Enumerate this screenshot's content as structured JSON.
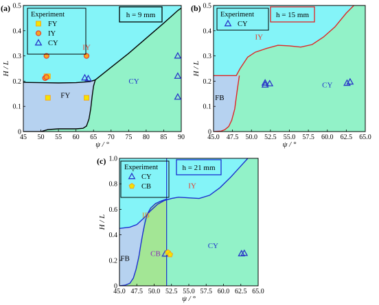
{
  "colors": {
    "region_cyan": "#84f4f8",
    "region_green": "#92f2c8",
    "region_blue": "#b6d2f0",
    "region_lightgreen": "#a3e695",
    "region_teal": "#8fd9d9",
    "boundary_black": "#000000",
    "boundary_red": "#e02424",
    "boundary_blue": "#1a2ed0",
    "marker_blue": "#2a35c8",
    "marker_orange": "#f5a623",
    "marker_red": "#e8382e",
    "marker_yellow": "#f5e400",
    "label_red": "#e53a2a",
    "label_blue": "#2233cc",
    "label_purple": "#8a2bb8",
    "label_orange": "#e08a20"
  },
  "chart_data": [
    {
      "type": "scatter",
      "panel_label": "(a)",
      "h_label": "h = 9 mm",
      "xlabel": "ψ / °",
      "ylabel": "H / L",
      "xlim": [
        45,
        90
      ],
      "ylim": [
        0,
        0.5
      ],
      "xticks": [
        "45",
        "50",
        "55",
        "60",
        "65",
        "70",
        "75",
        "80",
        "85",
        "90"
      ],
      "yticks": [
        "0",
        "0.1",
        "0.2",
        "0.3",
        "0.4",
        "0.5"
      ],
      "legend_title": "Experiment",
      "legend_entries": [
        "FY",
        "IY",
        "CY"
      ],
      "region_labels": [
        {
          "text": "IY",
          "x": 63.0,
          "y": 0.325
        },
        {
          "text": "FY",
          "x": 57.0,
          "y": 0.135
        },
        {
          "text": "CY",
          "x": 76.5,
          "y": 0.19
        }
      ],
      "boundaries": [
        {
          "name": "upper",
          "x": [
            45,
            50,
            55,
            60,
            64,
            65.5,
            70,
            75,
            80,
            85,
            89,
            90
          ],
          "y": [
            0.195,
            0.194,
            0.193,
            0.194,
            0.198,
            0.205,
            0.255,
            0.31,
            0.37,
            0.43,
            0.48,
            0.49
          ]
        },
        {
          "name": "lower",
          "x": [
            45,
            50,
            52,
            55,
            60,
            62,
            63,
            63.7,
            64.2,
            64.6,
            65.0,
            65.5
          ],
          "y": [
            0.0,
            0.0,
            0.008,
            0.011,
            0.011,
            0.013,
            0.022,
            0.05,
            0.09,
            0.14,
            0.18,
            0.205
          ]
        }
      ],
      "series": [
        {
          "name": "FY",
          "marker": "square",
          "points": [
            [
              52,
              0.134
            ],
            [
              63,
              0.134
            ],
            [
              51.6,
              0.219
            ],
            [
              52,
              0.219
            ]
          ]
        },
        {
          "name": "IY",
          "marker": "circle",
          "points": [
            [
              51.6,
              0.3
            ],
            [
              63,
              0.3
            ],
            [
              51.2,
              0.212
            ],
            [
              51.6,
              0.216
            ]
          ]
        },
        {
          "name": "CY",
          "marker": "triangle",
          "points": [
            [
              62.5,
              0.213
            ],
            [
              63.5,
              0.21
            ],
            [
              89,
              0.3
            ],
            [
              89,
              0.22
            ],
            [
              89,
              0.137
            ]
          ]
        }
      ]
    },
    {
      "type": "scatter",
      "panel_label": "(b)",
      "h_label": "h = 15 mm",
      "xlabel": "ψ / °",
      "ylabel": "H / L",
      "xlim": [
        45,
        65
      ],
      "ylim": [
        0,
        0.5
      ],
      "xticks": [
        "45.0",
        "47.5",
        "50.0",
        "52.5",
        "55.0",
        "57.5",
        "60.0",
        "62.5",
        "65.0"
      ],
      "yticks": [
        "0",
        "0.1",
        "0.2",
        "0.3",
        "0.4",
        "0.5"
      ],
      "legend_title": "Experiment",
      "legend_entries": [
        "CY"
      ],
      "region_labels": [
        {
          "text": "IY",
          "x": 51.0,
          "y": 0.365
        },
        {
          "text": "FB",
          "x": 45.8,
          "y": 0.125
        },
        {
          "text": "CY",
          "x": 60.0,
          "y": 0.175
        }
      ],
      "boundaries": [
        {
          "name": "upper",
          "x": [
            45,
            47,
            48,
            48.5,
            49.5,
            50.5,
            52,
            53.5,
            55,
            56.5,
            58,
            59.5,
            61,
            62.5,
            63.5
          ],
          "y": [
            0.222,
            0.222,
            0.222,
            0.25,
            0.295,
            0.315,
            0.33,
            0.342,
            0.34,
            0.335,
            0.345,
            0.375,
            0.415,
            0.47,
            0.5
          ]
        },
        {
          "name": "lower",
          "x": [
            45,
            46,
            46.5,
            47,
            47.4,
            47.8,
            48.1,
            48.4
          ],
          "y": [
            0.0,
            0.002,
            0.008,
            0.02,
            0.045,
            0.09,
            0.16,
            0.222
          ]
        }
      ],
      "series": [
        {
          "name": "CY",
          "marker": "triangle",
          "points": [
            [
              51.8,
              0.185
            ],
            [
              51.8,
              0.193
            ],
            [
              52.4,
              0.19
            ],
            [
              62.6,
              0.192
            ],
            [
              63.0,
              0.197
            ]
          ]
        }
      ]
    },
    {
      "type": "scatter",
      "panel_label": "(c)",
      "h_label": "h = 21 mm",
      "xlabel": "ψ / °",
      "ylabel": "H / L",
      "xlim": [
        45,
        65
      ],
      "ylim": [
        0,
        1.0
      ],
      "xticks": [
        "45.0",
        "47.5",
        "50.0",
        "52.5",
        "55.0",
        "57.5",
        "60.0",
        "62.5",
        "65.0"
      ],
      "yticks": [
        "0",
        "0.2",
        "0.4",
        "0.6",
        "0.8",
        "1.0"
      ],
      "vline_x": 51.8,
      "legend_title": "Experiment",
      "legend_entries": [
        "CY",
        "CB"
      ],
      "region_labels": [
        {
          "text": "IY",
          "x": 55.5,
          "y": 0.765
        },
        {
          "text": "IB",
          "x": 48.8,
          "y": 0.535
        },
        {
          "text": "FB",
          "x": 45.8,
          "y": 0.195
        },
        {
          "text": "CB",
          "x": 50.2,
          "y": 0.235
        },
        {
          "text": "CY",
          "x": 58.5,
          "y": 0.295
        }
      ],
      "boundaries": [
        {
          "name": "upper",
          "x": [
            45,
            46.5,
            47.5,
            48.5,
            49.5,
            50.5,
            51.5,
            52.5,
            53.5,
            55,
            56.5,
            58,
            59.5,
            61,
            62.5,
            63.5
          ],
          "y": [
            0.45,
            0.46,
            0.48,
            0.53,
            0.59,
            0.64,
            0.67,
            0.685,
            0.695,
            0.69,
            0.685,
            0.71,
            0.77,
            0.85,
            0.94,
            1.0
          ]
        },
        {
          "name": "lower",
          "x": [
            45,
            45.8,
            46.5,
            47.0,
            47.4,
            47.8,
            48.1,
            48.4,
            48.7,
            49.0,
            49.5,
            50.2,
            51.0,
            51.8
          ],
          "y": [
            0.0,
            0.005,
            0.02,
            0.06,
            0.13,
            0.23,
            0.33,
            0.42,
            0.5,
            0.56,
            0.61,
            0.645,
            0.665,
            0.68
          ]
        }
      ],
      "series": [
        {
          "name": "CY",
          "marker": "triangle",
          "points": [
            [
              51.6,
              0.25
            ],
            [
              62.6,
              0.252
            ],
            [
              63.0,
              0.255
            ]
          ]
        },
        {
          "name": "CB",
          "marker": "pentagon",
          "points": [
            [
              52.0,
              0.262
            ],
            [
              52.3,
              0.245
            ]
          ]
        }
      ]
    }
  ]
}
